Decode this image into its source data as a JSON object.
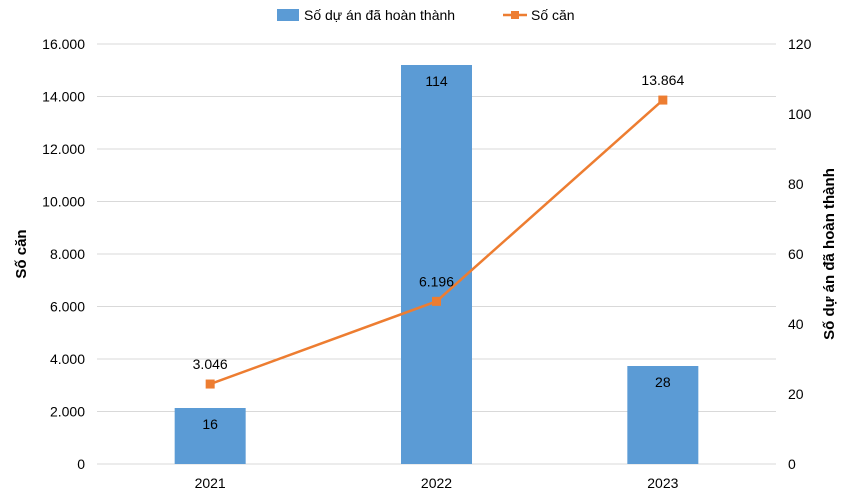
{
  "chart_data": {
    "type": "bar+line",
    "categories": [
      "2021",
      "2022",
      "2023"
    ],
    "series": [
      {
        "name": "Số dự án đã hoàn thành",
        "type": "bar",
        "axis": "right",
        "values": [
          16,
          114,
          28
        ],
        "labels": [
          "16",
          "114",
          "28"
        ],
        "color": "#5b9bd5"
      },
      {
        "name": "Số căn",
        "type": "line",
        "axis": "left",
        "values": [
          3046,
          6196,
          13864
        ],
        "labels": [
          "3.046",
          "6.196",
          "13.864"
        ],
        "color": "#ed7d31"
      }
    ],
    "y_left": {
      "label": "Số căn",
      "range": [
        0,
        16000
      ],
      "ticks": [
        "0",
        "2.000",
        "4.000",
        "6.000",
        "8.000",
        "10.000",
        "12.000",
        "14.000",
        "16.000"
      ]
    },
    "y_right": {
      "label": "Số dự án đã hoàn thành",
      "range": [
        0,
        120
      ],
      "ticks": [
        "0",
        "20",
        "40",
        "60",
        "80",
        "100",
        "120"
      ]
    },
    "grid": true,
    "legend": "top-center"
  }
}
